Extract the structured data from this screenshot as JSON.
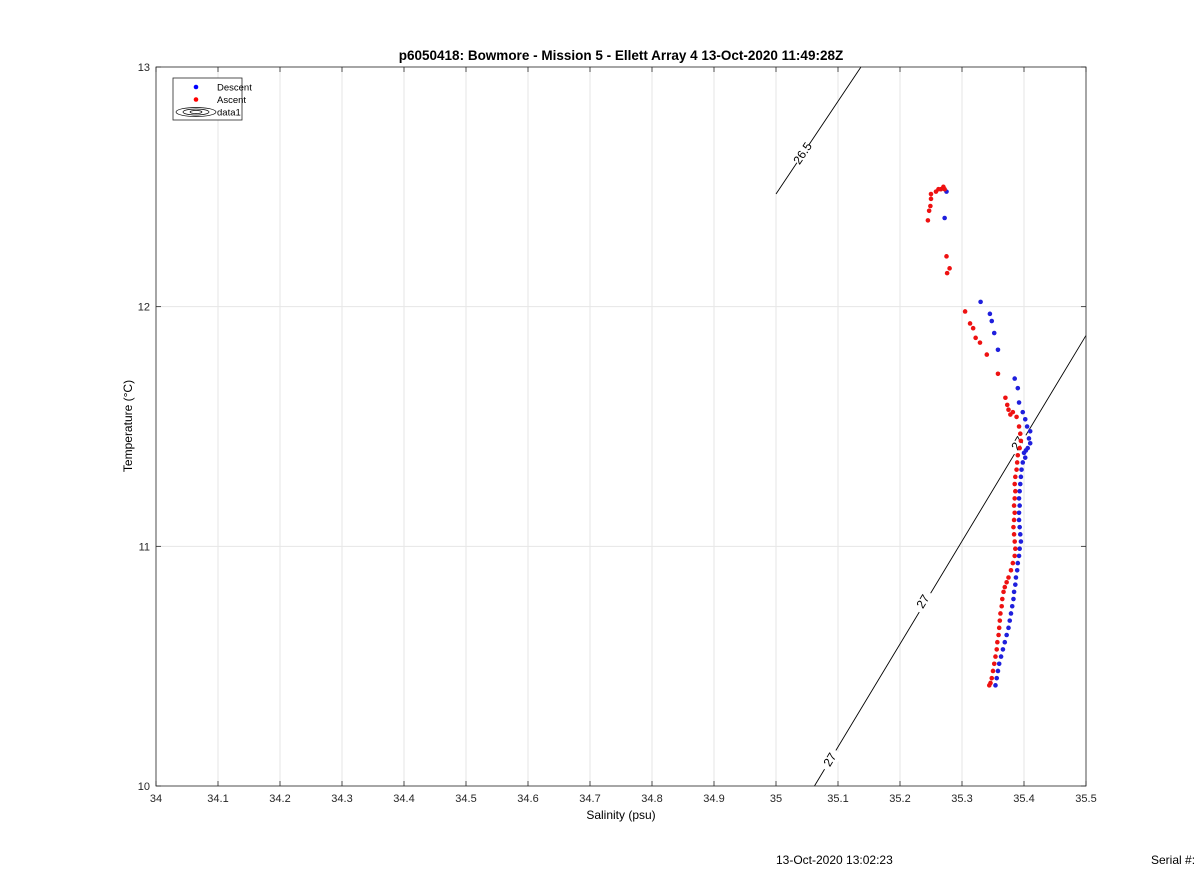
{
  "chart_data": {
    "type": "scatter",
    "title": "p6050418: Bowmore - Mission 5 - Ellett Array 4 13-Oct-2020 11:49:28Z",
    "xlabel": "Salinity (psu)",
    "ylabel": "Temperature (°C)",
    "xlim": [
      34,
      35.5
    ],
    "ylim": [
      10,
      13
    ],
    "xticks": [
      "34",
      "34.1",
      "34.2",
      "34.3",
      "34.4",
      "34.5",
      "34.6",
      "34.7",
      "34.8",
      "34.9",
      "35",
      "35.1",
      "35.2",
      "35.3",
      "35.4",
      "35.5"
    ],
    "yticks": [
      "10",
      "11",
      "12",
      "13"
    ],
    "grid": true,
    "legend_position": "top-left",
    "legend": [
      {
        "label": "Descent",
        "marker": "dot",
        "color": "#0000ff"
      },
      {
        "label": "Ascent",
        "marker": "dot",
        "color": "#ff0000"
      },
      {
        "label": "data1",
        "marker": "contour",
        "color": "#000000"
      }
    ],
    "series": [
      {
        "name": "Descent",
        "color": "#1f1fdd",
        "points": [
          [
            35.275,
            12.48
          ],
          [
            35.272,
            12.37
          ],
          [
            35.33,
            12.02
          ],
          [
            35.345,
            11.97
          ],
          [
            35.348,
            11.94
          ],
          [
            35.352,
            11.89
          ],
          [
            35.358,
            11.82
          ],
          [
            35.385,
            11.7
          ],
          [
            35.39,
            11.66
          ],
          [
            35.392,
            11.6
          ],
          [
            35.398,
            11.56
          ],
          [
            35.402,
            11.53
          ],
          [
            35.405,
            11.5
          ],
          [
            35.41,
            11.48
          ],
          [
            35.408,
            11.45
          ],
          [
            35.41,
            11.43
          ],
          [
            35.406,
            11.41
          ],
          [
            35.403,
            11.4
          ],
          [
            35.4,
            11.39
          ],
          [
            35.402,
            11.37
          ],
          [
            35.398,
            11.35
          ],
          [
            35.396,
            11.32
          ],
          [
            35.395,
            11.29
          ],
          [
            35.394,
            11.26
          ],
          [
            35.393,
            11.23
          ],
          [
            35.392,
            11.2
          ],
          [
            35.393,
            11.17
          ],
          [
            35.392,
            11.14
          ],
          [
            35.392,
            11.11
          ],
          [
            35.393,
            11.08
          ],
          [
            35.394,
            11.05
          ],
          [
            35.395,
            11.02
          ],
          [
            35.393,
            10.99
          ],
          [
            35.392,
            10.96
          ],
          [
            35.39,
            10.93
          ],
          [
            35.389,
            10.9
          ],
          [
            35.387,
            10.87
          ],
          [
            35.386,
            10.84
          ],
          [
            35.384,
            10.81
          ],
          [
            35.383,
            10.78
          ],
          [
            35.381,
            10.75
          ],
          [
            35.379,
            10.72
          ],
          [
            35.377,
            10.69
          ],
          [
            35.375,
            10.66
          ],
          [
            35.372,
            10.63
          ],
          [
            35.369,
            10.6
          ],
          [
            35.366,
            10.57
          ],
          [
            35.363,
            10.54
          ],
          [
            35.36,
            10.51
          ],
          [
            35.358,
            10.48
          ],
          [
            35.356,
            10.45
          ],
          [
            35.354,
            10.42
          ]
        ]
      },
      {
        "name": "Ascent",
        "color": "#ee1111",
        "points": [
          [
            35.25,
            12.47
          ],
          [
            35.258,
            12.48
          ],
          [
            35.262,
            12.49
          ],
          [
            35.266,
            12.49
          ],
          [
            35.27,
            12.5
          ],
          [
            35.272,
            12.49
          ],
          [
            35.25,
            12.45
          ],
          [
            35.249,
            12.42
          ],
          [
            35.247,
            12.4
          ],
          [
            35.245,
            12.36
          ],
          [
            35.275,
            12.21
          ],
          [
            35.28,
            12.16
          ],
          [
            35.276,
            12.14
          ],
          [
            35.305,
            11.98
          ],
          [
            35.313,
            11.93
          ],
          [
            35.318,
            11.91
          ],
          [
            35.322,
            11.87
          ],
          [
            35.329,
            11.85
          ],
          [
            35.34,
            11.8
          ],
          [
            35.358,
            11.72
          ],
          [
            35.37,
            11.62
          ],
          [
            35.373,
            11.59
          ],
          [
            35.375,
            11.57
          ],
          [
            35.378,
            11.55
          ],
          [
            35.382,
            11.56
          ],
          [
            35.388,
            11.54
          ],
          [
            35.392,
            11.5
          ],
          [
            35.394,
            11.47
          ],
          [
            35.395,
            11.44
          ],
          [
            35.393,
            11.41
          ],
          [
            35.39,
            11.38
          ],
          [
            35.389,
            11.35
          ],
          [
            35.388,
            11.32
          ],
          [
            35.386,
            11.29
          ],
          [
            35.385,
            11.26
          ],
          [
            35.386,
            11.23
          ],
          [
            35.385,
            11.2
          ],
          [
            35.384,
            11.17
          ],
          [
            35.385,
            11.14
          ],
          [
            35.384,
            11.11
          ],
          [
            35.383,
            11.08
          ],
          [
            35.384,
            11.05
          ],
          [
            35.385,
            11.02
          ],
          [
            35.386,
            10.99
          ],
          [
            35.385,
            10.96
          ],
          [
            35.382,
            10.93
          ],
          [
            35.379,
            10.9
          ],
          [
            35.375,
            10.87
          ],
          [
            35.372,
            10.85
          ],
          [
            35.369,
            10.83
          ],
          [
            35.367,
            10.81
          ],
          [
            35.365,
            10.78
          ],
          [
            35.364,
            10.75
          ],
          [
            35.362,
            10.72
          ],
          [
            35.361,
            10.69
          ],
          [
            35.36,
            10.66
          ],
          [
            35.359,
            10.63
          ],
          [
            35.357,
            10.6
          ],
          [
            35.356,
            10.57
          ],
          [
            35.354,
            10.54
          ],
          [
            35.352,
            10.51
          ],
          [
            35.35,
            10.48
          ],
          [
            35.348,
            10.45
          ],
          [
            35.346,
            10.43
          ],
          [
            35.344,
            10.42
          ]
        ]
      }
    ],
    "contours": [
      {
        "label": "26.5",
        "start": [
          35.0,
          12.47
        ],
        "end": [
          35.137,
          13.0
        ],
        "label_at": [
          35.043,
          12.64
        ]
      },
      {
        "label": "27",
        "start": [
          35.062,
          10.0
        ],
        "end": [
          35.5,
          11.88
        ],
        "labels_at": [
          [
            35.087,
            10.11
          ],
          [
            35.237,
            10.77
          ],
          [
            35.39,
            11.43
          ]
        ]
      }
    ]
  },
  "footer": {
    "timestamp": "13-Oct-2020 13:02:23",
    "serial": "Serial #:"
  }
}
